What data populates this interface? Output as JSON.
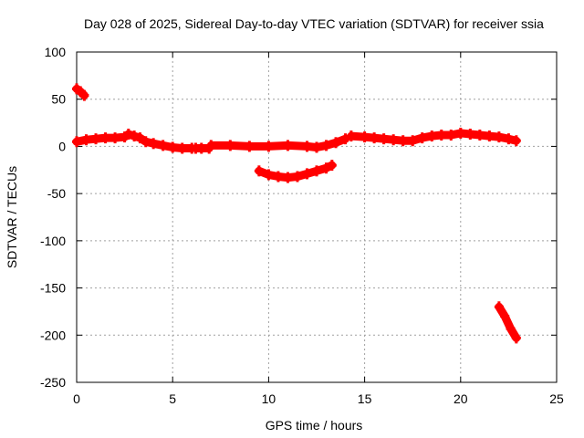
{
  "chart_data": {
    "type": "line",
    "title": "Day 028 of 2025, Sidereal Day-to-day VTEC variation (SDTVAR) for receiver ssia",
    "xlabel": "GPS time / hours",
    "ylabel": "SDTVAR / TECUs",
    "xlim": [
      0,
      25
    ],
    "ylim": [
      -250,
      100
    ],
    "xticks": [
      0,
      5,
      10,
      15,
      20,
      25
    ],
    "yticks": [
      100,
      50,
      0,
      -50,
      -100,
      -150,
      -200,
      -250
    ],
    "xtick_labels": [
      "0",
      "5",
      "10",
      "15",
      "20",
      "25"
    ],
    "ytick_labels": [
      "100",
      "50",
      "0",
      "-50",
      "-100",
      "-150",
      "-200",
      "-250"
    ],
    "grid": true,
    "legend": "none",
    "color": "#ff0000",
    "series": [
      {
        "points": [
          [
            0.0,
            61
          ],
          [
            0.2,
            58
          ],
          [
            0.4,
            54
          ]
        ]
      },
      {
        "points": [
          [
            0.0,
            5
          ],
          [
            0.5,
            7
          ],
          [
            1.0,
            8
          ],
          [
            1.5,
            9
          ],
          [
            2.0,
            9
          ],
          [
            2.5,
            10
          ],
          [
            2.7,
            13
          ],
          [
            3.0,
            11
          ],
          [
            3.3,
            9
          ],
          [
            3.6,
            5
          ],
          [
            4.0,
            3
          ],
          [
            4.5,
            1
          ],
          [
            5.0,
            -1
          ],
          [
            5.5,
            -2
          ],
          [
            6.0,
            -2
          ]
        ]
      },
      {
        "points": [
          [
            6.2,
            -2
          ],
          [
            6.5,
            -2
          ],
          [
            6.9,
            -2
          ]
        ]
      },
      {
        "points": [
          [
            7.0,
            1
          ],
          [
            8.0,
            1
          ],
          [
            9.0,
            0
          ],
          [
            10.0,
            0
          ],
          [
            11.0,
            1
          ],
          [
            12.0,
            0
          ],
          [
            12.5,
            -1
          ],
          [
            13.0,
            1
          ],
          [
            13.5,
            4
          ],
          [
            14.0,
            8
          ]
        ]
      },
      {
        "points": [
          [
            9.5,
            -26
          ],
          [
            10.0,
            -30
          ],
          [
            10.5,
            -32
          ],
          [
            11.0,
            -33
          ],
          [
            11.5,
            -32
          ],
          [
            12.0,
            -29
          ],
          [
            12.5,
            -26
          ],
          [
            13.0,
            -23
          ],
          [
            13.3,
            -20
          ]
        ]
      },
      {
        "points": [
          [
            14.3,
            11
          ],
          [
            15.0,
            10
          ],
          [
            15.5,
            9
          ],
          [
            16.0,
            8
          ],
          [
            16.5,
            7
          ],
          [
            17.0,
            6
          ],
          [
            17.5,
            6
          ],
          [
            18.0,
            9
          ],
          [
            18.5,
            11
          ],
          [
            19.0,
            12
          ],
          [
            19.5,
            12
          ],
          [
            20.0,
            14
          ],
          [
            20.5,
            13
          ],
          [
            21.0,
            12
          ],
          [
            21.5,
            11
          ],
          [
            22.0,
            10
          ],
          [
            22.5,
            8
          ],
          [
            22.9,
            6
          ]
        ]
      },
      {
        "points": [
          [
            22.0,
            -170
          ],
          [
            22.3,
            -180
          ],
          [
            22.6,
            -193
          ],
          [
            22.9,
            -203
          ]
        ]
      }
    ]
  }
}
